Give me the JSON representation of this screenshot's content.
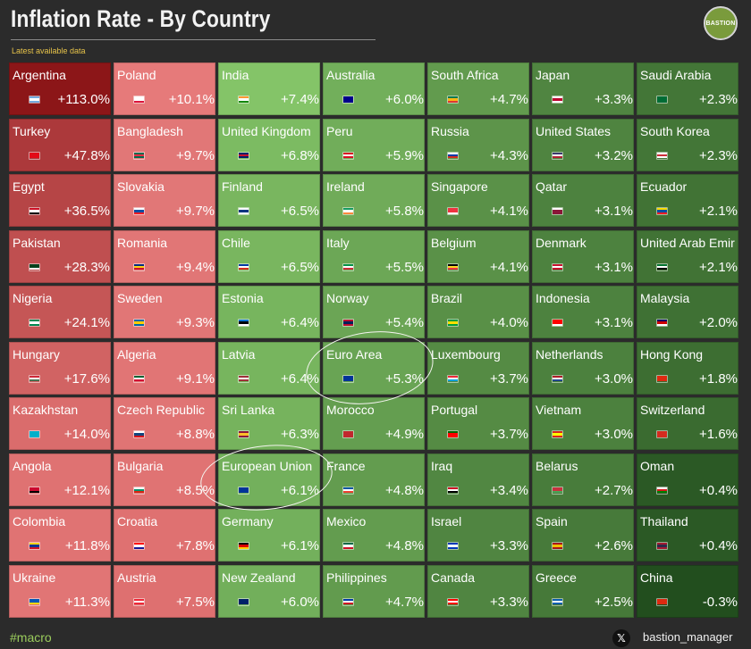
{
  "header": {
    "title": "Inflation Rate - By Country",
    "subtitle": "Latest available data",
    "logo_text": "BASTION"
  },
  "footer": {
    "hashtag": "#macro",
    "x_icon": "x-logo-icon",
    "handle": "bastion_manager"
  },
  "colors": {
    "bg": "#2b2b2b",
    "subtitle": "#e7c34a",
    "hashtag": "#9acc5c"
  },
  "chart_data": {
    "type": "heatmap",
    "title": "Inflation Rate - By Country",
    "subtitle": "Latest available data",
    "unit": "%",
    "columns": [
      [
        {
          "country": "Argentina",
          "label": "+113.0%",
          "value": 113.0,
          "flag": [
            "#74acdf",
            "#ffffff",
            "#74acdf"
          ]
        },
        {
          "country": "Turkey",
          "label": "+47.8%",
          "value": 47.8,
          "flag": [
            "#e30a17",
            "#e30a17",
            "#e30a17"
          ]
        },
        {
          "country": "Egypt",
          "label": "+36.5%",
          "value": 36.5,
          "flag": [
            "#ce1126",
            "#ffffff",
            "#000000"
          ]
        },
        {
          "country": "Pakistan",
          "label": "+28.3%",
          "value": 28.3,
          "flag": [
            "#01411c",
            "#01411c",
            "#ffffff"
          ]
        },
        {
          "country": "Nigeria",
          "label": "+24.1%",
          "value": 24.1,
          "flag": [
            "#008751",
            "#ffffff",
            "#008751"
          ]
        },
        {
          "country": "Hungary",
          "label": "+17.6%",
          "value": 17.6,
          "flag": [
            "#ce2939",
            "#ffffff",
            "#477050"
          ]
        },
        {
          "country": "Kazakhstan",
          "label": "+14.0%",
          "value": 14.0,
          "flag": [
            "#00afca",
            "#00afca",
            "#00afca"
          ]
        },
        {
          "country": "Angola",
          "label": "+12.1%",
          "value": 12.1,
          "flag": [
            "#cc092f",
            "#cc092f",
            "#000000"
          ]
        },
        {
          "country": "Colombia",
          "label": "+11.8%",
          "value": 11.8,
          "flag": [
            "#fcd116",
            "#003893",
            "#ce1126"
          ]
        },
        {
          "country": "Ukraine",
          "label": "+11.3%",
          "value": 11.3,
          "flag": [
            "#0057b7",
            "#0057b7",
            "#ffd700"
          ]
        }
      ],
      [
        {
          "country": "Poland",
          "label": "+10.1%",
          "value": 10.1,
          "flag": [
            "#ffffff",
            "#ffffff",
            "#dc143c"
          ]
        },
        {
          "country": "Bangladesh",
          "label": "+9.7%",
          "value": 9.7,
          "flag": [
            "#006a4e",
            "#f42a41",
            "#006a4e"
          ]
        },
        {
          "country": "Slovakia",
          "label": "+9.7%",
          "value": 9.7,
          "flag": [
            "#ffffff",
            "#0b4ea2",
            "#ee1c25"
          ]
        },
        {
          "country": "Romania",
          "label": "+9.4%",
          "value": 9.4,
          "flag": [
            "#002b7f",
            "#fcd116",
            "#ce1126"
          ]
        },
        {
          "country": "Sweden",
          "label": "+9.3%",
          "value": 9.3,
          "flag": [
            "#006aa7",
            "#fecc00",
            "#006aa7"
          ]
        },
        {
          "country": "Algeria",
          "label": "+9.1%",
          "value": 9.1,
          "flag": [
            "#006233",
            "#ffffff",
            "#d21034"
          ]
        },
        {
          "country": "Czech Republic",
          "label": "+8.8%",
          "value": 8.8,
          "flag": [
            "#ffffff",
            "#11457e",
            "#d7141a"
          ]
        },
        {
          "country": "Bulgaria",
          "label": "+8.5%",
          "value": 8.5,
          "flag": [
            "#ffffff",
            "#00966e",
            "#d62612"
          ]
        },
        {
          "country": "Croatia",
          "label": "+7.8%",
          "value": 7.8,
          "flag": [
            "#ff0000",
            "#ffffff",
            "#171796"
          ]
        },
        {
          "country": "Austria",
          "label": "+7.5%",
          "value": 7.5,
          "flag": [
            "#ed2939",
            "#ffffff",
            "#ed2939"
          ]
        }
      ],
      [
        {
          "country": "India",
          "label": "+7.4%",
          "value": 7.4,
          "flag": [
            "#ff9933",
            "#ffffff",
            "#138808"
          ]
        },
        {
          "country": "United Kingdom",
          "label": "+6.8%",
          "value": 6.8,
          "flag": [
            "#012169",
            "#c8102e",
            "#012169"
          ]
        },
        {
          "country": "Finland",
          "label": "+6.5%",
          "value": 6.5,
          "flag": [
            "#ffffff",
            "#003580",
            "#ffffff"
          ]
        },
        {
          "country": "Chile",
          "label": "+6.5%",
          "value": 6.5,
          "flag": [
            "#0039a6",
            "#ffffff",
            "#d52b1e"
          ]
        },
        {
          "country": "Estonia",
          "label": "+6.4%",
          "value": 6.4,
          "flag": [
            "#0072ce",
            "#000000",
            "#ffffff"
          ]
        },
        {
          "country": "Latvia",
          "label": "+6.4%",
          "value": 6.4,
          "flag": [
            "#9e3039",
            "#ffffff",
            "#9e3039"
          ]
        },
        {
          "country": "Sri Lanka",
          "label": "+6.3%",
          "value": 6.3,
          "flag": [
            "#8d153a",
            "#ffbe29",
            "#8d153a"
          ]
        },
        {
          "country": "European Union",
          "label": "+6.1%",
          "value": 6.1,
          "flag": [
            "#003399",
            "#003399",
            "#003399"
          ]
        },
        {
          "country": "Germany",
          "label": "+6.1%",
          "value": 6.1,
          "flag": [
            "#000000",
            "#dd0000",
            "#ffce00"
          ]
        },
        {
          "country": "New Zealand",
          "label": "+6.0%",
          "value": 6.0,
          "flag": [
            "#012169",
            "#012169",
            "#012169"
          ]
        }
      ],
      [
        {
          "country": "Australia",
          "label": "+6.0%",
          "value": 6.0,
          "flag": [
            "#00008b",
            "#00008b",
            "#00008b"
          ]
        },
        {
          "country": "Peru",
          "label": "+5.9%",
          "value": 5.9,
          "flag": [
            "#d91023",
            "#ffffff",
            "#d91023"
          ]
        },
        {
          "country": "Ireland",
          "label": "+5.8%",
          "value": 5.8,
          "flag": [
            "#169b62",
            "#ffffff",
            "#ff883e"
          ]
        },
        {
          "country": "Italy",
          "label": "+5.5%",
          "value": 5.5,
          "flag": [
            "#009246",
            "#ffffff",
            "#ce2b37"
          ]
        },
        {
          "country": "Norway",
          "label": "+5.4%",
          "value": 5.4,
          "flag": [
            "#ba0c2f",
            "#00205b",
            "#ba0c2f"
          ]
        },
        {
          "country": "Euro Area",
          "label": "+5.3%",
          "value": 5.3,
          "flag": [
            "#003399",
            "#003399",
            "#003399"
          ]
        },
        {
          "country": "Morocco",
          "label": "+4.9%",
          "value": 4.9,
          "flag": [
            "#c1272d",
            "#c1272d",
            "#c1272d"
          ]
        },
        {
          "country": "France",
          "label": "+4.8%",
          "value": 4.8,
          "flag": [
            "#0055a4",
            "#ffffff",
            "#ef4135"
          ]
        },
        {
          "country": "Mexico",
          "label": "+4.8%",
          "value": 4.8,
          "flag": [
            "#006847",
            "#ffffff",
            "#ce1126"
          ]
        },
        {
          "country": "Philippines",
          "label": "+4.7%",
          "value": 4.7,
          "flag": [
            "#0038a8",
            "#ffffff",
            "#ce1126"
          ]
        }
      ],
      [
        {
          "country": "South Africa",
          "label": "+4.7%",
          "value": 4.7,
          "flag": [
            "#007a4d",
            "#ffb612",
            "#de3831"
          ]
        },
        {
          "country": "Russia",
          "label": "+4.3%",
          "value": 4.3,
          "flag": [
            "#ffffff",
            "#0039a6",
            "#d52b1e"
          ]
        },
        {
          "country": "Singapore",
          "label": "+4.1%",
          "value": 4.1,
          "flag": [
            "#ef3340",
            "#ef3340",
            "#ffffff"
          ]
        },
        {
          "country": "Belgium",
          "label": "+4.1%",
          "value": 4.1,
          "flag": [
            "#000000",
            "#fdda24",
            "#ef3340"
          ]
        },
        {
          "country": "Brazil",
          "label": "+4.0%",
          "value": 4.0,
          "flag": [
            "#009c3b",
            "#ffdf00",
            "#009c3b"
          ]
        },
        {
          "country": "Luxembourg",
          "label": "+3.7%",
          "value": 3.7,
          "flag": [
            "#ed2939",
            "#ffffff",
            "#00a1de"
          ]
        },
        {
          "country": "Portugal",
          "label": "+3.7%",
          "value": 3.7,
          "flag": [
            "#006600",
            "#ff0000",
            "#ff0000"
          ]
        },
        {
          "country": "Iraq",
          "label": "+3.4%",
          "value": 3.4,
          "flag": [
            "#ce1126",
            "#ffffff",
            "#000000"
          ]
        },
        {
          "country": "Israel",
          "label": "+3.3%",
          "value": 3.3,
          "flag": [
            "#0038b8",
            "#ffffff",
            "#0038b8"
          ]
        },
        {
          "country": "Canada",
          "label": "+3.3%",
          "value": 3.3,
          "flag": [
            "#ff0000",
            "#ffffff",
            "#ff0000"
          ]
        }
      ],
      [
        {
          "country": "Japan",
          "label": "+3.3%",
          "value": 3.3,
          "flag": [
            "#ffffff",
            "#bc002d",
            "#ffffff"
          ]
        },
        {
          "country": "United States",
          "label": "+3.2%",
          "value": 3.2,
          "flag": [
            "#3c3b6e",
            "#ffffff",
            "#b22234"
          ]
        },
        {
          "country": "Qatar",
          "label": "+3.1%",
          "value": 3.1,
          "flag": [
            "#ffffff",
            "#8a1538",
            "#8a1538"
          ]
        },
        {
          "country": "Denmark",
          "label": "+3.1%",
          "value": 3.1,
          "flag": [
            "#c8102e",
            "#ffffff",
            "#c8102e"
          ]
        },
        {
          "country": "Indonesia",
          "label": "+3.1%",
          "value": 3.1,
          "flag": [
            "#ff0000",
            "#ff0000",
            "#ffffff"
          ]
        },
        {
          "country": "Netherlands",
          "label": "+3.0%",
          "value": 3.0,
          "flag": [
            "#ae1c28",
            "#ffffff",
            "#21468b"
          ]
        },
        {
          "country": "Vietnam",
          "label": "+3.0%",
          "value": 3.0,
          "flag": [
            "#da251d",
            "#ffff00",
            "#da251d"
          ]
        },
        {
          "country": "Belarus",
          "label": "+2.7%",
          "value": 2.7,
          "flag": [
            "#c8313e",
            "#c8313e",
            "#4aa657"
          ]
        },
        {
          "country": "Spain",
          "label": "+2.6%",
          "value": 2.6,
          "flag": [
            "#aa151b",
            "#f1bf00",
            "#aa151b"
          ]
        },
        {
          "country": "Greece",
          "label": "+2.5%",
          "value": 2.5,
          "flag": [
            "#0d5eaf",
            "#ffffff",
            "#0d5eaf"
          ]
        }
      ],
      [
        {
          "country": "Saudi Arabia",
          "label": "+2.3%",
          "value": 2.3,
          "flag": [
            "#006c35",
            "#006c35",
            "#006c35"
          ]
        },
        {
          "country": "South Korea",
          "label": "+2.3%",
          "value": 2.3,
          "flag": [
            "#ffffff",
            "#cd2e3a",
            "#ffffff"
          ]
        },
        {
          "country": "Ecuador",
          "label": "+2.1%",
          "value": 2.1,
          "flag": [
            "#ffdd00",
            "#034ea2",
            "#ed1c24"
          ]
        },
        {
          "country": "United Arab Emir",
          "label": "+2.1%",
          "value": 2.1,
          "flag": [
            "#00732f",
            "#ffffff",
            "#000000"
          ]
        },
        {
          "country": "Malaysia",
          "label": "+2.0%",
          "value": 2.0,
          "flag": [
            "#010066",
            "#cc0001",
            "#ffffff"
          ]
        },
        {
          "country": "Hong Kong",
          "label": "+1.8%",
          "value": 1.8,
          "flag": [
            "#de2910",
            "#de2910",
            "#de2910"
          ]
        },
        {
          "country": "Switzerland",
          "label": "+1.6%",
          "value": 1.6,
          "flag": [
            "#d52b1e",
            "#d52b1e",
            "#d52b1e"
          ]
        },
        {
          "country": "Oman",
          "label": "+0.4%",
          "value": 0.4,
          "flag": [
            "#ffffff",
            "#db161b",
            "#008000"
          ]
        },
        {
          "country": "Thailand",
          "label": "+0.4%",
          "value": 0.4,
          "flag": [
            "#a51931",
            "#2d2a4a",
            "#a51931"
          ]
        },
        {
          "country": "China",
          "label": "-0.3%",
          "value": -0.3,
          "flag": [
            "#de2910",
            "#de2910",
            "#de2910"
          ]
        }
      ]
    ],
    "highlighted": [
      "Euro Area",
      "European Union"
    ]
  }
}
